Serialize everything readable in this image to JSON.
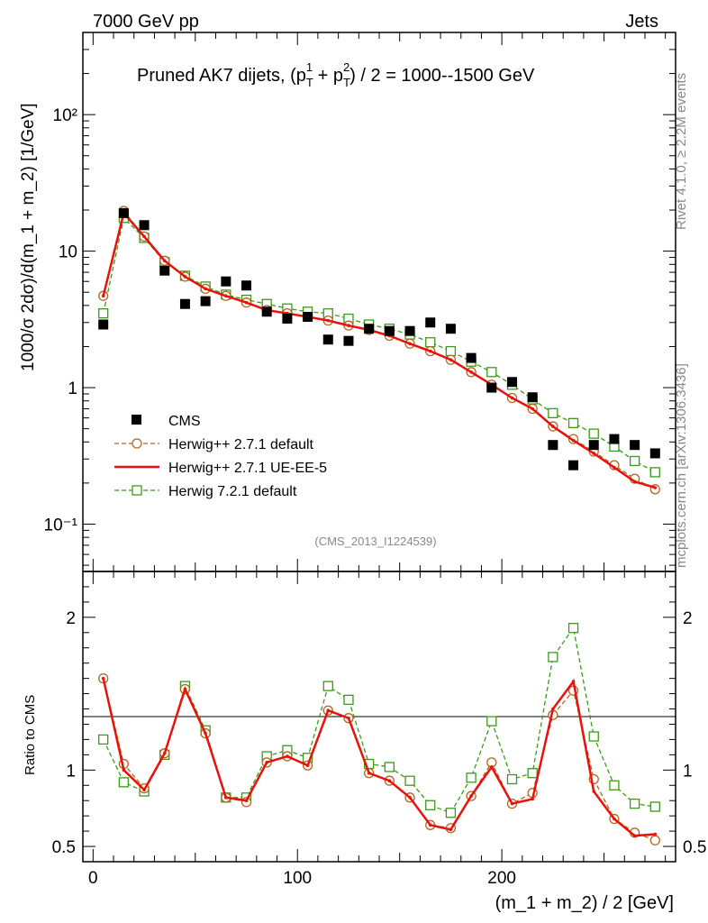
{
  "header": {
    "left": "7000 GeV pp",
    "right": "Jets",
    "title_prefix": "Pruned AK7 dijets, (p",
    "title_sub1": "T",
    "title_sup1": "1",
    "title_mid": " + p",
    "title_sub2": "T",
    "title_sup2": "2",
    "title_suffix": ") / 2 = 1000--1500 GeV",
    "side_rivet": "Rivet 4.1.0, ≥ 2.2M events",
    "side_mcplots": "mcplots.cern.ch [arXiv:1306.3436]",
    "analysis_id": "(CMS_2013_I1224539)"
  },
  "colors": {
    "cms": "#000000",
    "herwig271": "#b5651d",
    "ueee5": "#e8120c",
    "herwig721": "#3a9a1a"
  },
  "chart_data": [
    {
      "type": "line",
      "title": "Pruned AK7 dijets, (pT1 + pT2) / 2 = 1000--1500 GeV",
      "ylabel": "1000/σ  2dσ)/d(m_1 + m_2) [1/GeV]",
      "yscale": "log",
      "ylim": [
        0.045,
        400
      ],
      "xlim": [
        -5,
        285
      ],
      "ytick_labels": [
        "10⁻¹",
        "1",
        "10",
        "10²"
      ],
      "x": [
        5,
        15,
        25,
        35,
        45,
        55,
        65,
        75,
        85,
        95,
        105,
        115,
        125,
        135,
        145,
        155,
        165,
        175,
        185,
        195,
        205,
        215,
        225,
        235,
        245,
        255,
        265,
        275
      ],
      "series": [
        {
          "name": "CMS",
          "style": "marker",
          "values": [
            2.9,
            19.0,
            15.5,
            7.2,
            4.1,
            4.3,
            6.0,
            5.6,
            3.6,
            3.2,
            3.3,
            2.25,
            2.2,
            2.7,
            2.6,
            2.6,
            3.0,
            2.7,
            1.65,
            1.0,
            1.1,
            0.85,
            0.38,
            0.27,
            0.38,
            0.42,
            0.38,
            0.33
          ]
        },
        {
          "name": "Herwig++ 2.7.1 default",
          "style": "dashed-circle",
          "values": [
            4.7,
            19.7,
            12.8,
            8.5,
            6.5,
            5.3,
            4.7,
            4.2,
            3.7,
            3.5,
            3.3,
            3.1,
            2.85,
            2.65,
            2.4,
            2.1,
            1.85,
            1.6,
            1.3,
            1.05,
            0.84,
            0.7,
            0.52,
            0.42,
            0.34,
            0.27,
            0.215,
            0.18
          ]
        },
        {
          "name": "Herwig++ 2.7.1 UE-EE-5",
          "style": "solid",
          "values": [
            4.7,
            19.0,
            12.8,
            8.5,
            6.5,
            5.3,
            4.7,
            4.2,
            3.7,
            3.5,
            3.3,
            3.1,
            2.85,
            2.65,
            2.4,
            2.1,
            1.85,
            1.6,
            1.3,
            1.05,
            0.84,
            0.7,
            0.52,
            0.41,
            0.33,
            0.26,
            0.205,
            0.185
          ]
        },
        {
          "name": "Herwig 7.2.1 default",
          "style": "dashed-square",
          "values": [
            3.5,
            17.5,
            12.5,
            8.3,
            6.6,
            5.5,
            4.8,
            4.4,
            4.1,
            3.8,
            3.6,
            3.5,
            3.2,
            2.9,
            2.7,
            2.45,
            2.15,
            1.85,
            1.55,
            1.3,
            1.05,
            0.82,
            0.65,
            0.55,
            0.46,
            0.37,
            0.29,
            0.24
          ]
        }
      ]
    },
    {
      "type": "line",
      "ylabel": "Ratio to CMS",
      "xlabel": "(m_1 + m_2) / 2 [GeV]",
      "ylim": [
        0.4,
        2.3
      ],
      "xlim": [
        -5,
        285
      ],
      "yticks": [
        0.5,
        1,
        2
      ],
      "ytick_labels": [
        "0.5",
        "1",
        "2"
      ],
      "xticks": [
        0,
        100,
        200
      ],
      "xtick_labels": [
        "0",
        "100",
        "200"
      ],
      "x": [
        5,
        15,
        25,
        35,
        45,
        55,
        65,
        75,
        85,
        95,
        105,
        115,
        125,
        135,
        145,
        155,
        165,
        175,
        185,
        195,
        205,
        215,
        225,
        235,
        245,
        255,
        265,
        275
      ],
      "series": [
        {
          "name": "Herwig++ 2.7.1 default",
          "style": "dashed-circle",
          "values": [
            1.6,
            1.04,
            0.88,
            1.11,
            1.53,
            1.24,
            0.82,
            0.79,
            1.05,
            1.09,
            1.03,
            1.39,
            1.34,
            0.98,
            0.93,
            0.82,
            0.64,
            0.62,
            0.83,
            1.05,
            0.78,
            0.85,
            1.36,
            1.52,
            0.94,
            0.68,
            0.59,
            0.54
          ]
        },
        {
          "name": "Herwig++ 2.7.1 UE-EE-5",
          "style": "solid",
          "values": [
            1.6,
            1.0,
            0.87,
            1.11,
            1.53,
            1.24,
            0.82,
            0.8,
            1.05,
            1.09,
            1.03,
            1.39,
            1.34,
            0.98,
            0.93,
            0.82,
            0.64,
            0.61,
            0.83,
            1.02,
            0.78,
            0.81,
            1.4,
            1.58,
            0.86,
            0.68,
            0.57,
            0.58
          ]
        },
        {
          "name": "Herwig 7.2.1 default",
          "style": "dashed-square",
          "values": [
            1.2,
            0.92,
            0.86,
            1.1,
            1.55,
            1.26,
            0.82,
            0.82,
            1.09,
            1.13,
            1.08,
            1.55,
            1.46,
            1.04,
            1.02,
            0.93,
            0.77,
            0.72,
            0.95,
            1.32,
            0.94,
            0.98,
            1.74,
            1.93,
            1.22,
            0.9,
            0.78,
            0.76
          ]
        }
      ]
    }
  ],
  "legend": [
    "CMS",
    "Herwig++ 2.7.1 default",
    "Herwig++ 2.7.1 UE-EE-5",
    "Herwig 7.2.1 default"
  ]
}
